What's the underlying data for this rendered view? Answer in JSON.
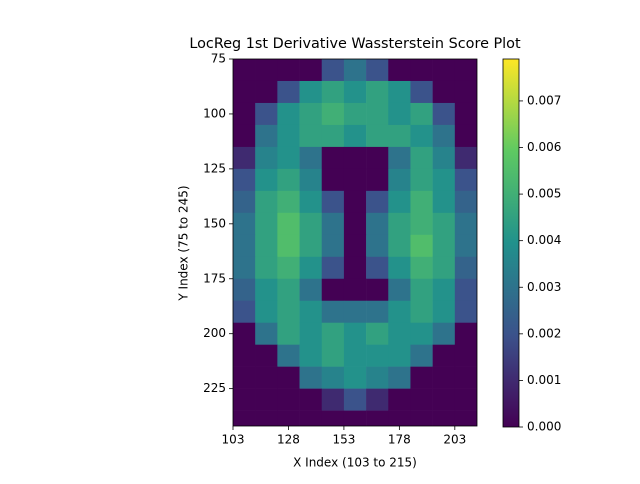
{
  "chart_data": {
    "type": "heatmap",
    "title": "LocReg 1st Derivative Wassterstein Score Plot",
    "x_label": "X Index (103 to 215)",
    "y_label": "Y Index (75 to 245)",
    "x": [
      108,
      118,
      128,
      138,
      148,
      158,
      168,
      178,
      188,
      198,
      208
    ],
    "y": [
      80,
      90,
      100,
      110,
      120,
      130,
      140,
      150,
      160,
      170,
      180,
      190,
      200,
      210,
      220,
      230,
      240
    ],
    "values": [
      [
        0,
        0,
        0,
        0,
        0.002,
        0.003,
        0.002,
        0,
        0,
        0,
        0
      ],
      [
        0,
        0,
        0.002,
        0.004,
        0.0045,
        0.004,
        0.0045,
        0.004,
        0.002,
        0,
        0
      ],
      [
        0,
        0.002,
        0.004,
        0.0045,
        0.005,
        0.0045,
        0.0045,
        0.004,
        0.0045,
        0.002,
        0
      ],
      [
        0,
        0.003,
        0.004,
        0.0045,
        0.0045,
        0.004,
        0.0045,
        0.0045,
        0.004,
        0.003,
        0
      ],
      [
        0.001,
        0.0035,
        0.004,
        0.003,
        0,
        0,
        0,
        0.003,
        0.0045,
        0.0035,
        0.001
      ],
      [
        0.002,
        0.004,
        0.0045,
        0.0035,
        0,
        0,
        0,
        0.0035,
        0.0045,
        0.004,
        0.002
      ],
      [
        0.0025,
        0.0045,
        0.005,
        0.004,
        0.002,
        0,
        0.002,
        0.004,
        0.005,
        0.004,
        0.0025
      ],
      [
        0.003,
        0.0045,
        0.0055,
        0.0045,
        0.003,
        0,
        0.003,
        0.0045,
        0.005,
        0.0045,
        0.003
      ],
      [
        0.003,
        0.0045,
        0.0055,
        0.0045,
        0.003,
        0,
        0.003,
        0.0045,
        0.0055,
        0.0045,
        0.003
      ],
      [
        0.003,
        0.0045,
        0.005,
        0.004,
        0.002,
        0,
        0.002,
        0.004,
        0.005,
        0.0045,
        0.0025
      ],
      [
        0.0025,
        0.004,
        0.0045,
        0.003,
        0,
        0,
        0,
        0.003,
        0.0045,
        0.004,
        0.002
      ],
      [
        0.002,
        0.004,
        0.0045,
        0.004,
        0.003,
        0.003,
        0.003,
        0.004,
        0.0045,
        0.004,
        0.002
      ],
      [
        0,
        0.003,
        0.0045,
        0.004,
        0.0045,
        0.004,
        0.0045,
        0.004,
        0.004,
        0.003,
        0
      ],
      [
        0,
        0,
        0.003,
        0.004,
        0.0045,
        0.004,
        0.004,
        0.004,
        0.003,
        0,
        0
      ],
      [
        0,
        0,
        0,
        0.003,
        0.0035,
        0.004,
        0.0035,
        0.003,
        0,
        0,
        0
      ],
      [
        0,
        0,
        0,
        0,
        0.001,
        0.002,
        0.001,
        0,
        0,
        0,
        0
      ],
      [
        0,
        0,
        0,
        0,
        0,
        0,
        0,
        0,
        0,
        0,
        0
      ]
    ],
    "xlim": [
      103,
      213
    ],
    "ylim": [
      75,
      242
    ],
    "xticks": [
      103,
      128,
      153,
      178,
      203
    ],
    "yticks": [
      75,
      100,
      125,
      150,
      175,
      200,
      225
    ],
    "colormap": "viridis",
    "clim": [
      0,
      0.0079
    ],
    "colorbar_ticks": [
      {
        "value": 0,
        "label": "0.000"
      },
      {
        "value": 0.001,
        "label": "0.001"
      },
      {
        "value": 0.002,
        "label": "0.002"
      },
      {
        "value": 0.003,
        "label": "0.003"
      },
      {
        "value": 0.004,
        "label": "0.004"
      },
      {
        "value": 0.005,
        "label": "0.005"
      },
      {
        "value": 0.006,
        "label": "0.006"
      },
      {
        "value": 0.007,
        "label": "0.007"
      }
    ]
  }
}
